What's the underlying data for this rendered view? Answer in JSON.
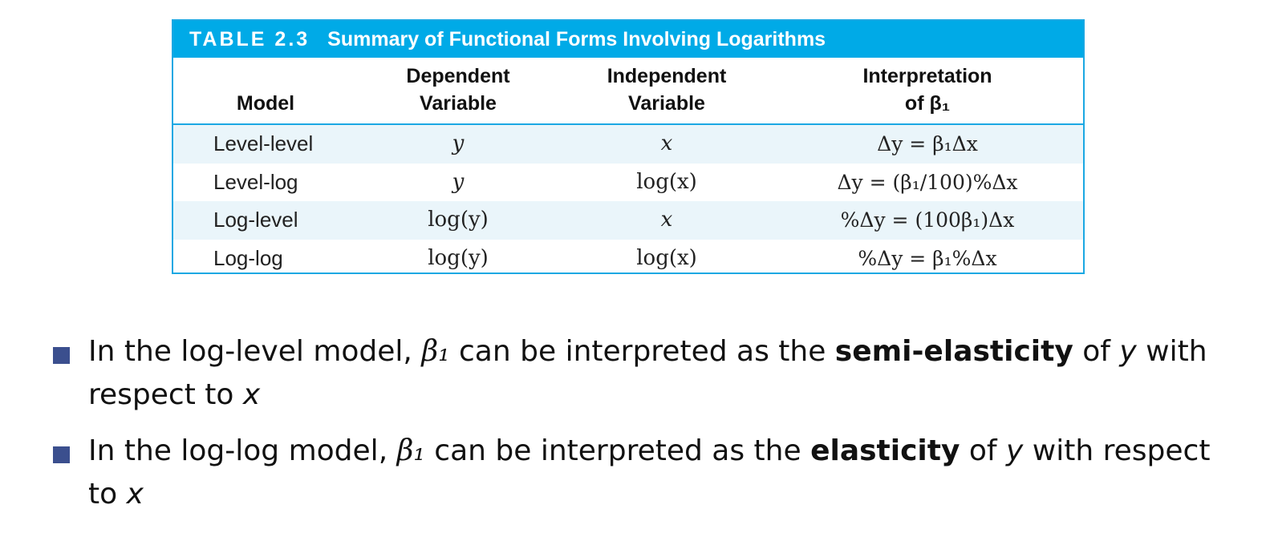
{
  "table": {
    "label": "TABLE 2.3",
    "title": "Summary of Functional Forms Involving Logarithms",
    "headers": {
      "model": "Model",
      "dependent_line1": "Dependent",
      "dependent_line2": "Variable",
      "independent_line1": "Independent",
      "independent_line2": "Variable",
      "interpretation_line1": "Interpretation",
      "interpretation_line2": "of β₁"
    },
    "rows": [
      {
        "model": "Level-level",
        "dependent": "y",
        "independent": "x",
        "interpretation": "Δy = β₁Δx"
      },
      {
        "model": "Level-log",
        "dependent": "y",
        "independent": "log(x)",
        "interpretation": "Δy = (β₁/100)%Δx"
      },
      {
        "model": "Log-level",
        "dependent": "log(y)",
        "independent": "x",
        "interpretation": "%Δy = (100β₁)Δx"
      },
      {
        "model": "Log-log",
        "dependent": "log(y)",
        "independent": "log(x)",
        "interpretation": "%Δy = β₁%Δx"
      }
    ]
  },
  "bullets": [
    {
      "pre": "In the log-level model, ",
      "beta": "β₁",
      "mid": " can be interpreted as the ",
      "term": "semi-elasticity",
      "post1": " of ",
      "var_y": "y",
      "post2": " with respect to ",
      "var_x": "x"
    },
    {
      "pre": "In the log-log model, ",
      "beta": "β₁",
      "mid": " can be interpreted as the ",
      "term": "elasticity",
      "post1": " of ",
      "var_y": "y",
      "post2": " with respect to ",
      "var_x": "x"
    }
  ],
  "colors": {
    "header_bg": "#00aae7",
    "row_shade": "#eaf5fa",
    "bullet_square": "#3b4f8e"
  }
}
